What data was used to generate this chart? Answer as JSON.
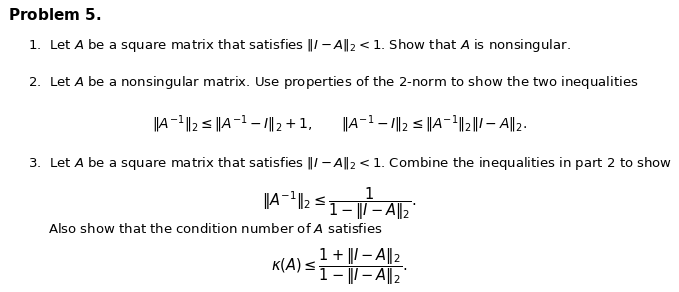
{
  "background_color": "#ffffff",
  "text_color": "#000000",
  "figsize": [
    6.79,
    2.92
  ],
  "dpi": 100
}
